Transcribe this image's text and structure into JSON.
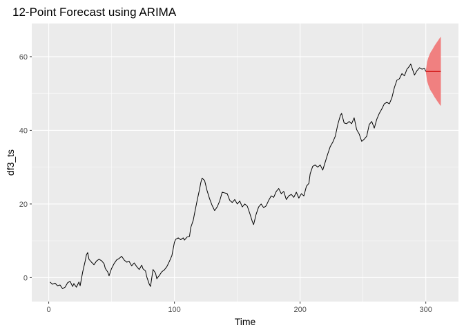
{
  "chart_data": {
    "type": "line",
    "title": "12-Point Forecast using ARIMA",
    "xlabel": "Time",
    "ylabel": "df3_ts",
    "xlim": [
      -13.5,
      326
    ],
    "ylim": [
      -6.5,
      69
    ],
    "x_ticks": [
      0,
      100,
      200,
      300
    ],
    "x_tick_labels": [
      "0",
      "100",
      "200",
      "300"
    ],
    "x_minor_ticks": [
      50,
      150,
      250
    ],
    "y_ticks": [
      0,
      20,
      40,
      60
    ],
    "y_tick_labels": [
      "0",
      "20",
      "40",
      "60"
    ],
    "y_minor_ticks": [
      10,
      30,
      50
    ],
    "grid": true,
    "legend": "none",
    "colors": {
      "panel": "#ebebeb",
      "series": "#000000",
      "forecast_line": "#cc0000",
      "forecast_band": "#f08080"
    },
    "series": [
      {
        "values": [
          [
            1,
            -1.2
          ],
          [
            3,
            -1.8
          ],
          [
            5,
            -1.5
          ],
          [
            7,
            -2.2
          ],
          [
            9,
            -2.0
          ],
          [
            11,
            -3.0
          ],
          [
            13,
            -2.6
          ],
          [
            15,
            -1.4
          ],
          [
            17,
            -1.0
          ],
          [
            19,
            -2.4
          ],
          [
            20,
            -1.6
          ],
          [
            22,
            -2.6
          ],
          [
            24,
            -1.2
          ],
          [
            25,
            -2.2
          ],
          [
            27,
            1.5
          ],
          [
            29,
            4.5
          ],
          [
            30,
            6.2
          ],
          [
            31,
            6.8
          ],
          [
            32,
            5.0
          ],
          [
            34,
            4.2
          ],
          [
            36,
            3.5
          ],
          [
            38,
            4.5
          ],
          [
            40,
            5.0
          ],
          [
            42,
            4.6
          ],
          [
            44,
            3.8
          ],
          [
            45,
            2.5
          ],
          [
            47,
            1.5
          ],
          [
            48,
            0.5
          ],
          [
            50,
            2.5
          ],
          [
            52,
            3.8
          ],
          [
            54,
            4.8
          ],
          [
            56,
            5.2
          ],
          [
            58,
            5.8
          ],
          [
            60,
            4.8
          ],
          [
            62,
            4.2
          ],
          [
            64,
            4.4
          ],
          [
            66,
            3.2
          ],
          [
            68,
            4.0
          ],
          [
            70,
            3.0
          ],
          [
            72,
            2.2
          ],
          [
            74,
            3.4
          ],
          [
            75,
            2.4
          ],
          [
            77,
            1.8
          ],
          [
            78,
            0.2
          ],
          [
            80,
            -1.8
          ],
          [
            81,
            -2.4
          ],
          [
            82,
            0.0
          ],
          [
            83,
            2.2
          ],
          [
            85,
            1.2
          ],
          [
            86,
            -0.3
          ],
          [
            88,
            0.6
          ],
          [
            90,
            1.6
          ],
          [
            92,
            2.1
          ],
          [
            94,
            3.0
          ],
          [
            96,
            4.4
          ],
          [
            98,
            6.0
          ],
          [
            99,
            7.8
          ],
          [
            100,
            9.6
          ],
          [
            101,
            10.4
          ],
          [
            103,
            10.8
          ],
          [
            105,
            10.3
          ],
          [
            107,
            10.8
          ],
          [
            108,
            10.2
          ],
          [
            110,
            11.0
          ],
          [
            112,
            11.2
          ],
          [
            113,
            13.6
          ],
          [
            115,
            15.6
          ],
          [
            116,
            17.4
          ],
          [
            118,
            20.8
          ],
          [
            120,
            24.0
          ],
          [
            121,
            25.8
          ],
          [
            122,
            27.0
          ],
          [
            124,
            26.4
          ],
          [
            126,
            23.6
          ],
          [
            128,
            21.4
          ],
          [
            130,
            19.6
          ],
          [
            132,
            18.2
          ],
          [
            134,
            19.2
          ],
          [
            136,
            20.8
          ],
          [
            138,
            23.2
          ],
          [
            140,
            23.0
          ],
          [
            142,
            22.8
          ],
          [
            144,
            21.0
          ],
          [
            146,
            20.4
          ],
          [
            148,
            21.2
          ],
          [
            150,
            20.0
          ],
          [
            152,
            20.8
          ],
          [
            154,
            19.2
          ],
          [
            156,
            20.0
          ],
          [
            158,
            19.4
          ],
          [
            160,
            17.4
          ],
          [
            162,
            15.2
          ],
          [
            163,
            14.4
          ],
          [
            165,
            17.2
          ],
          [
            167,
            19.2
          ],
          [
            169,
            20.0
          ],
          [
            171,
            19.0
          ],
          [
            173,
            19.5
          ],
          [
            175,
            21.0
          ],
          [
            177,
            22.2
          ],
          [
            179,
            21.8
          ],
          [
            181,
            23.4
          ],
          [
            183,
            24.2
          ],
          [
            185,
            22.8
          ],
          [
            187,
            23.4
          ],
          [
            189,
            21.2
          ],
          [
            191,
            22.2
          ],
          [
            193,
            22.6
          ],
          [
            195,
            21.8
          ],
          [
            197,
            23.2
          ],
          [
            199,
            21.6
          ],
          [
            201,
            22.8
          ],
          [
            203,
            22.2
          ],
          [
            205,
            24.8
          ],
          [
            207,
            25.6
          ],
          [
            208,
            28.2
          ],
          [
            210,
            30.2
          ],
          [
            212,
            30.6
          ],
          [
            214,
            30.0
          ],
          [
            216,
            30.6
          ],
          [
            218,
            29.2
          ],
          [
            220,
            31.4
          ],
          [
            222,
            33.6
          ],
          [
            224,
            35.6
          ],
          [
            226,
            36.8
          ],
          [
            228,
            38.4
          ],
          [
            230,
            41.6
          ],
          [
            232,
            44.0
          ],
          [
            233,
            44.6
          ],
          [
            235,
            42.0
          ],
          [
            237,
            41.8
          ],
          [
            239,
            42.4
          ],
          [
            241,
            41.8
          ],
          [
            243,
            43.4
          ],
          [
            245,
            40.2
          ],
          [
            247,
            39.0
          ],
          [
            249,
            37.0
          ],
          [
            251,
            37.6
          ],
          [
            253,
            38.4
          ],
          [
            255,
            41.6
          ],
          [
            257,
            42.4
          ],
          [
            259,
            40.6
          ],
          [
            261,
            43.0
          ],
          [
            263,
            44.6
          ],
          [
            265,
            45.8
          ],
          [
            267,
            47.2
          ],
          [
            269,
            47.6
          ],
          [
            271,
            47.2
          ],
          [
            273,
            48.8
          ],
          [
            275,
            51.6
          ],
          [
            277,
            53.6
          ],
          [
            279,
            54.0
          ],
          [
            281,
            55.4
          ],
          [
            283,
            54.8
          ],
          [
            285,
            56.6
          ],
          [
            287,
            57.4
          ],
          [
            288,
            58.0
          ],
          [
            290,
            56.0
          ],
          [
            291,
            55.0
          ],
          [
            293,
            56.2
          ],
          [
            295,
            57.0
          ],
          [
            297,
            56.6
          ],
          [
            299,
            56.8
          ],
          [
            300,
            56.0
          ]
        ]
      }
    ],
    "forecast": {
      "x": [
        301,
        302,
        303,
        304,
        305,
        306,
        307,
        308,
        309,
        310,
        311,
        312
      ],
      "point": [
        56.0,
        56.0,
        56.0,
        56.0,
        56.0,
        56.0,
        56.0,
        56.0,
        56.0,
        56.0,
        56.0,
        56.0
      ],
      "lower_95": [
        53.4,
        52.3,
        51.4,
        50.7,
        50.2,
        49.6,
        49.0,
        48.5,
        48.0,
        47.5,
        47.0,
        46.6
      ],
      "upper_95": [
        58.6,
        59.7,
        60.6,
        61.3,
        61.8,
        62.4,
        63.0,
        63.5,
        64.0,
        64.5,
        65.0,
        65.4
      ]
    }
  }
}
